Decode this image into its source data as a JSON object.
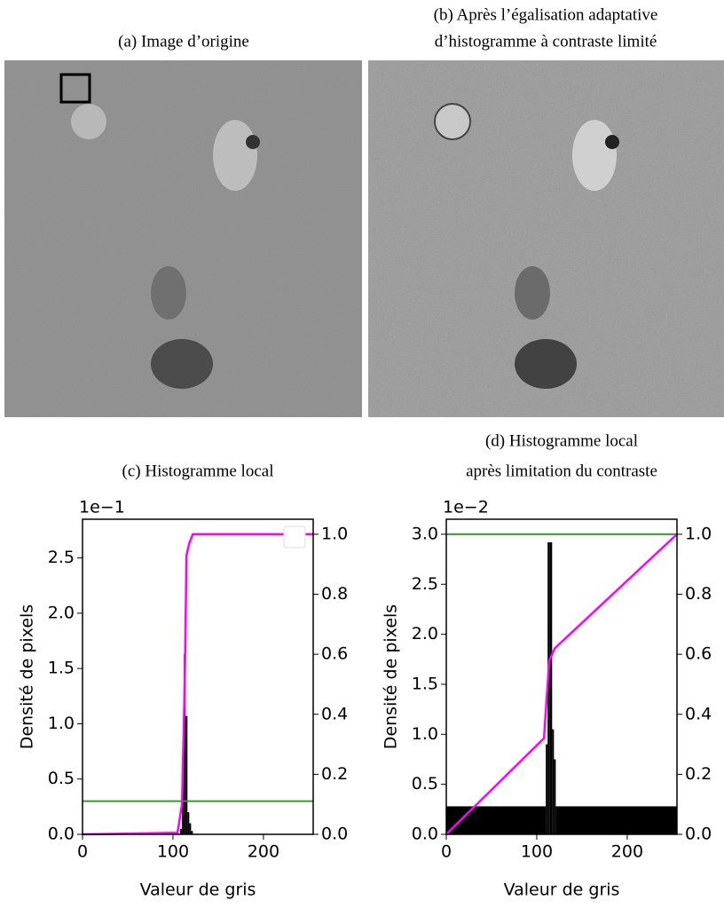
{
  "images": [
    {
      "caption": [
        "(a)  Image d’origine"
      ]
    },
    {
      "caption": [
        "(b)  Après l’égalisation adaptative",
        "d’histogramme à contraste limité"
      ]
    }
  ],
  "chart_data": [
    {
      "type": "histogram",
      "title": [
        "(c)  Histogramme local"
      ],
      "offset_label": "1e−1",
      "xlabel": "Valeur de gris",
      "ylabel": "Densité de pixels",
      "xlim": [
        0,
        255
      ],
      "xticks": [
        0,
        100,
        200
      ],
      "ylim": [
        0,
        2.85
      ],
      "yticks": [
        {
          "value": 0,
          "label": "0.0"
        },
        0.5,
        {
          "value": 1,
          "label": "1.0"
        },
        1.5,
        {
          "value": 2,
          "label": "2.0"
        },
        2.5
      ],
      "y2lim": [
        0,
        1.05
      ],
      "y2ticks": [
        {
          "value": 0,
          "label": "0.0"
        },
        0.2,
        0.4,
        0.6,
        0.8,
        {
          "value": 1,
          "label": "1.0"
        }
      ],
      "bins": [
        108,
        110,
        112,
        114,
        116,
        118,
        120,
        122
      ],
      "values": [
        0.05,
        0.5,
        1.63,
        1.07,
        0.2,
        0.1,
        0.03
      ],
      "color": "#000000",
      "cdf": {
        "x": [
          0,
          105,
          110,
          113,
          115,
          118,
          122,
          255
        ],
        "values": [
          0,
          0.005,
          0.1,
          0.5,
          0.93,
          0.97,
          1.0,
          1.0
        ],
        "color": "#ff00ff",
        "axis": "y2"
      },
      "hline": {
        "value": 0.3,
        "color": "#2ca02c"
      },
      "empty_legend": true
    },
    {
      "type": "histogram",
      "title": [
        "(d)  Histogramme local",
        "après limitation du contraste"
      ],
      "offset_label": "1e−2",
      "xlabel": "Valeur de gris",
      "ylabel": "Densité de pixels",
      "xlim": [
        0,
        255
      ],
      "xticks": [
        0,
        100,
        200
      ],
      "ylim": [
        0,
        3.15
      ],
      "yticks": [
        {
          "value": 0,
          "label": "0.0"
        },
        0.5,
        {
          "value": 1,
          "label": "1.0"
        },
        1.5,
        {
          "value": 2,
          "label": "2.0"
        },
        2.5,
        {
          "value": 3,
          "label": "3.0"
        }
      ],
      "y2lim": [
        0,
        1.05
      ],
      "y2ticks": [
        {
          "value": 0,
          "label": "0.0"
        },
        0.2,
        0.4,
        0.6,
        0.8,
        {
          "value": 1,
          "label": "1.0"
        }
      ],
      "bins": [
        0,
        110,
        112,
        114,
        117,
        119,
        121,
        255
      ],
      "values": [
        0.28,
        0.9,
        2.92,
        2.92,
        1.05,
        0.75,
        0.28
      ],
      "color": "#000000",
      "cdf": {
        "x": [
          0,
          108,
          112,
          114,
          120,
          255
        ],
        "values": [
          0,
          0.32,
          0.5,
          0.58,
          0.62,
          1.0
        ],
        "color": "#ff00ff",
        "axis": "y2"
      },
      "hline": {
        "value": 3.0,
        "color": "#2ca02c"
      },
      "empty_legend": false
    }
  ]
}
